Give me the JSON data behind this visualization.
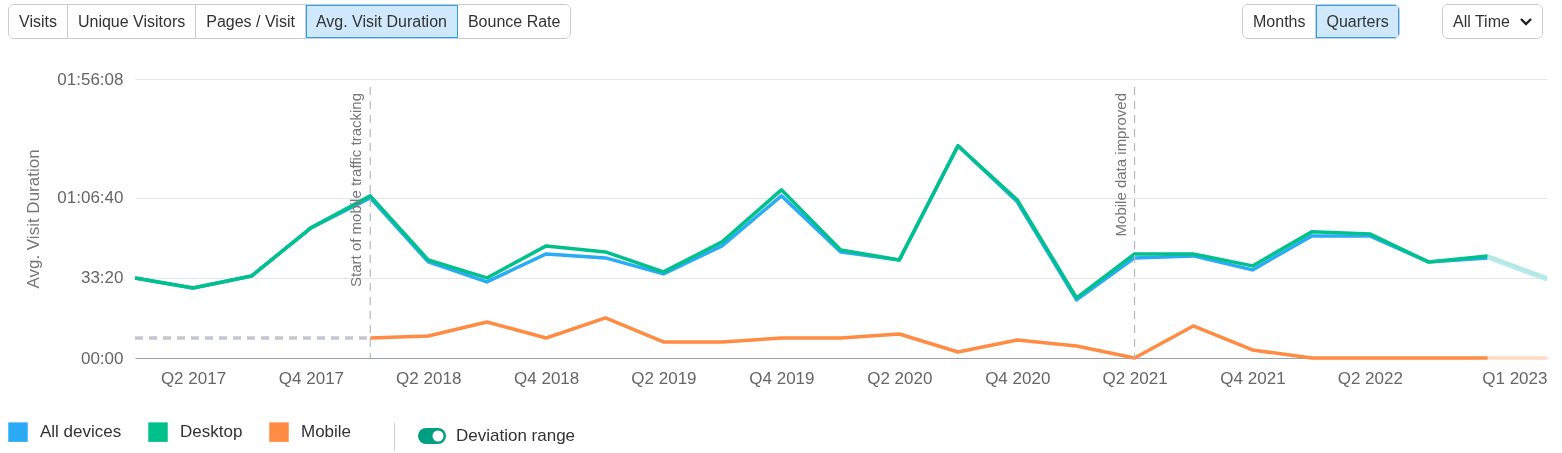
{
  "chart_data": {
    "type": "line",
    "ylabel": "Avg. Visit Duration",
    "x": [
      "2017-01",
      "2017-04",
      "2017-07",
      "2017-10",
      "2018-01",
      "2018-04",
      "2018-07",
      "2018-10",
      "2019-01",
      "2019-04",
      "2019-07",
      "2019-10",
      "2020-01",
      "2020-04",
      "2020-07",
      "2020-10",
      "2021-01",
      "2021-04",
      "2021-07",
      "2021-10",
      "2022-01",
      "2022-04",
      "2022-07",
      "2022-10",
      "2023-01"
    ],
    "xlim": [
      "2017-01",
      "2023-01"
    ],
    "xticks": [
      {
        "value": "2017-04",
        "label": "Q2 2017"
      },
      {
        "value": "2017-10",
        "label": "Q4 2017"
      },
      {
        "value": "2018-04",
        "label": "Q2 2018"
      },
      {
        "value": "2018-10",
        "label": "Q4 2018"
      },
      {
        "value": "2019-04",
        "label": "Q2 2019"
      },
      {
        "value": "2019-10",
        "label": "Q4 2019"
      },
      {
        "value": "2020-04",
        "label": "Q2 2020"
      },
      {
        "value": "2020-10",
        "label": "Q4 2020"
      },
      {
        "value": "2021-04",
        "label": "Q2 2021"
      },
      {
        "value": "2021-10",
        "label": "Q4 2021"
      },
      {
        "value": "2022-04",
        "label": "Q2 2022"
      },
      {
        "value": "2023-01",
        "label": "Q1 2023"
      }
    ],
    "series": [
      {
        "name": "All devices",
        "color": "#2aabf5",
        "values": [
          2000,
          1750,
          2050,
          3250,
          4000,
          2400,
          1900,
          2600,
          2500,
          2100,
          2800,
          4050,
          2650,
          2450,
          5300,
          3900,
          1450,
          2500,
          2550,
          2200,
          3050,
          3050,
          2400,
          2500,
          null
        ]
      },
      {
        "name": "Desktop",
        "color": "#00c08b",
        "values": [
          2000,
          1750,
          2050,
          3250,
          4050,
          2450,
          2000,
          2800,
          2650,
          2150,
          2900,
          4200,
          2700,
          2450,
          5300,
          3950,
          1500,
          2600,
          2600,
          2300,
          3150,
          3100,
          2400,
          2550,
          null
        ]
      },
      {
        "name": "Mobile",
        "color": "#ff8c42",
        "values": [
          null,
          null,
          null,
          null,
          500,
          550,
          900,
          500,
          1000,
          400,
          400,
          500,
          500,
          600,
          150,
          450,
          300,
          0,
          800,
          200,
          0,
          0,
          0,
          0,
          null
        ]
      },
      {
        "color": "#c4c6d0",
        "line_style": "dashed",
        "values": [
          500,
          500,
          500,
          500,
          500,
          null,
          null,
          null,
          null,
          null,
          null,
          null,
          null,
          null,
          null,
          null,
          null,
          null,
          null,
          null,
          null,
          null,
          null,
          null,
          null
        ]
      },
      {
        "color": "#bde6fb",
        "values": [
          null,
          null,
          null,
          null,
          null,
          null,
          null,
          null,
          null,
          null,
          null,
          null,
          null,
          null,
          null,
          null,
          null,
          null,
          null,
          null,
          null,
          null,
          null,
          2500,
          1950
        ]
      },
      {
        "color": "#b2ebdd",
        "values": [
          null,
          null,
          null,
          null,
          null,
          null,
          null,
          null,
          null,
          null,
          null,
          null,
          null,
          null,
          null,
          null,
          null,
          null,
          null,
          null,
          null,
          null,
          null,
          2550,
          2000
        ]
      },
      {
        "color": "#ffd9c2",
        "values": [
          null,
          null,
          null,
          null,
          null,
          null,
          null,
          null,
          null,
          null,
          null,
          null,
          null,
          null,
          null,
          null,
          null,
          null,
          null,
          null,
          null,
          null,
          null,
          0,
          0
        ]
      }
    ],
    "ylim": [
      0,
      6968
    ],
    "yticks": [
      {
        "value": 0,
        "label": "00:00"
      },
      {
        "value": 2000,
        "label": "33:20"
      },
      {
        "value": 4000,
        "label": "01:06:40"
      },
      {
        "value": 6968,
        "label": "01:56:08"
      }
    ],
    "grid": "y",
    "legend": "bottom left",
    "ref_lines": [
      {
        "axis": "x",
        "value": "2018-01",
        "label": "Start of mobile traffic tracking",
        "color": "#b5b8bf",
        "line_style": "dashed"
      },
      {
        "axis": "x",
        "value": "2021-04",
        "label": "Mobile data improved",
        "color": "#b5b8bf",
        "line_style": "dashed"
      }
    ],
    "annotations": [
      "Visits",
      "Unique Visitors",
      "Pages / Visit",
      "Avg. Visit Duration",
      "Bounce Rate",
      "Months",
      "Quarters",
      "All Time",
      "Deviation range"
    ]
  }
}
